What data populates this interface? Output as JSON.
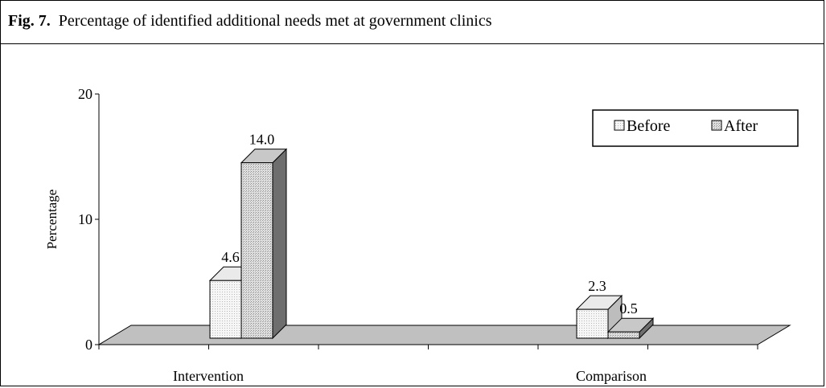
{
  "figure": {
    "number": "Fig. 7.",
    "caption": "Percentage of identified additional needs met at government clinics"
  },
  "chart_data": {
    "type": "bar",
    "title": "Fig. 7.   Percentage of identified additional needs met at government clinics",
    "categories": [
      "Intervention",
      "Comparison"
    ],
    "series": [
      {
        "name": "Before",
        "values": [
          4.6,
          2.3
        ],
        "data_labels": [
          "4.6",
          "2.3"
        ]
      },
      {
        "name": "After",
        "values": [
          14.0,
          0.5
        ],
        "data_labels": [
          "14.0",
          "0.5"
        ]
      }
    ],
    "xlabel": "",
    "ylabel": "Percentage",
    "ylim": [
      0,
      20
    ],
    "yticks": [
      0,
      10,
      20
    ],
    "legend_position": "top-right",
    "style": "3d-column",
    "grid": false,
    "colors": {
      "before": "#f4f4f4",
      "after": "#dcdcdc",
      "floor": "#c0c0c0"
    }
  }
}
